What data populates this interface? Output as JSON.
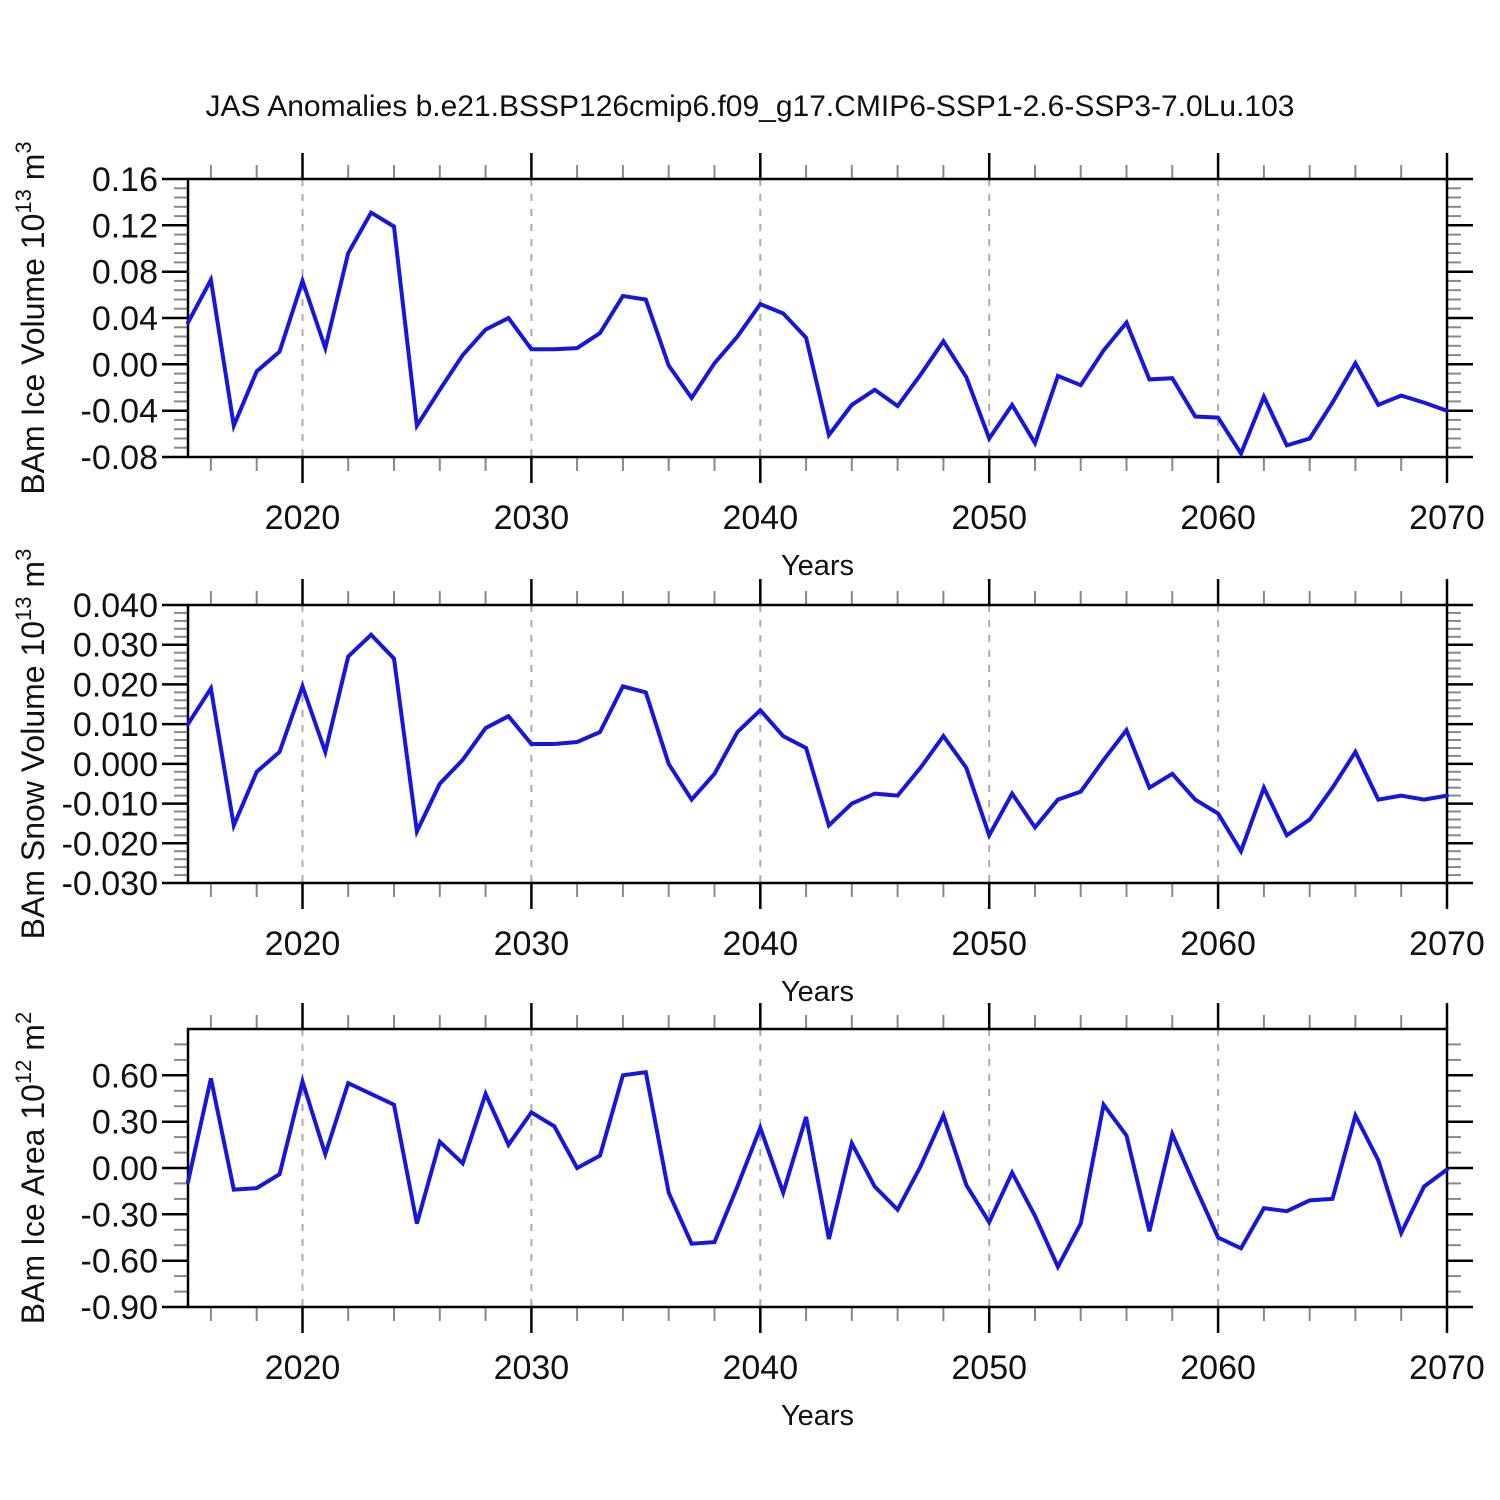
{
  "page": {
    "title": "JAS Anomalies b.e21.BSSP126cmip6.f09_g17.CMIP6-SSP1-2.6-SSP3-7.0Lu.103"
  },
  "style": {
    "line_color": "#1616dd",
    "grid_color": "#ababab",
    "axis_color": "#000000",
    "minor_tick_color": "#888888"
  },
  "years": [
    2015,
    2016,
    2017,
    2018,
    2019,
    2020,
    2021,
    2022,
    2023,
    2024,
    2025,
    2026,
    2027,
    2028,
    2029,
    2030,
    2031,
    2032,
    2033,
    2034,
    2035,
    2036,
    2037,
    2038,
    2039,
    2040,
    2041,
    2042,
    2043,
    2044,
    2045,
    2046,
    2047,
    2048,
    2049,
    2050,
    2051,
    2052,
    2053,
    2054,
    2055,
    2056,
    2057,
    2058,
    2059,
    2060,
    2061,
    2062,
    2063,
    2064,
    2065,
    2066,
    2067,
    2068,
    2069,
    2070
  ],
  "chart_data": [
    {
      "type": "line",
      "name": "ice-volume",
      "title": "",
      "xlabel": "Years",
      "ylabel": {
        "text": "BAm Ice Volume 10",
        "sup": "13",
        "unit": " m",
        "unit_sup": "3"
      },
      "xlim": [
        2015,
        2070
      ],
      "ylim": [
        -0.08,
        0.16
      ],
      "grid_years": [
        2020,
        2030,
        2040,
        2050,
        2060
      ],
      "x_major_ticks": [
        2020,
        2030,
        2040,
        2050,
        2060,
        2070
      ],
      "x_minor_step": 2,
      "y_major_step": 0.04,
      "y_minor_step": 0.008,
      "yticks": [
        {
          "v": 0.16,
          "label": "0.16"
        },
        {
          "v": 0.12,
          "label": "0.12"
        },
        {
          "v": 0.08,
          "label": "0.08"
        },
        {
          "v": 0.04,
          "label": "0.04"
        },
        {
          "v": 0.0,
          "label": "0.00"
        },
        {
          "v": -0.04,
          "label": "-0.04"
        },
        {
          "v": -0.08,
          "label": "-0.08"
        }
      ],
      "values": [
        0.036,
        0.073,
        -0.053,
        -0.006,
        0.011,
        0.072,
        0.014,
        0.096,
        0.131,
        0.119,
        -0.053,
        -0.022,
        0.008,
        0.03,
        0.04,
        0.013,
        0.013,
        0.014,
        0.027,
        0.059,
        0.056,
        -0.001,
        -0.029,
        0.001,
        0.024,
        0.052,
        0.044,
        0.023,
        -0.061,
        -0.035,
        -0.022,
        -0.036,
        -0.009,
        0.02,
        -0.011,
        -0.064,
        -0.035,
        -0.068,
        -0.01,
        -0.018,
        0.012,
        0.036,
        -0.013,
        -0.012,
        -0.045,
        -0.046,
        -0.077,
        -0.028,
        -0.07,
        -0.064,
        -0.033,
        0.001,
        -0.035,
        -0.027,
        -0.033,
        -0.04
      ]
    },
    {
      "type": "line",
      "name": "snow-volume",
      "title": "",
      "xlabel": "Years",
      "ylabel": {
        "text": "BAm Snow Volume 10",
        "sup": "13",
        "unit": " m",
        "unit_sup": "3"
      },
      "xlim": [
        2015,
        2070
      ],
      "ylim": [
        -0.03,
        0.04
      ],
      "grid_years": [
        2020,
        2030,
        2040,
        2050,
        2060
      ],
      "x_major_ticks": [
        2020,
        2030,
        2040,
        2050,
        2060,
        2070
      ],
      "x_minor_step": 2,
      "y_major_step": 0.01,
      "y_minor_step": 0.002,
      "yticks": [
        {
          "v": 0.04,
          "label": "0.040"
        },
        {
          "v": 0.03,
          "label": "0.030"
        },
        {
          "v": 0.02,
          "label": "0.020"
        },
        {
          "v": 0.01,
          "label": "0.010"
        },
        {
          "v": 0.0,
          "label": "0.000"
        },
        {
          "v": -0.01,
          "label": "-0.010"
        },
        {
          "v": -0.02,
          "label": "-0.020"
        },
        {
          "v": -0.03,
          "label": "-0.030"
        }
      ],
      "values": [
        0.01,
        0.019,
        -0.0155,
        -0.002,
        0.003,
        0.0195,
        0.003,
        0.027,
        0.0325,
        0.0265,
        -0.017,
        -0.005,
        0.001,
        0.009,
        0.012,
        0.005,
        0.005,
        0.0055,
        0.008,
        0.0195,
        0.018,
        0.0,
        -0.009,
        -0.0025,
        0.008,
        0.0135,
        0.007,
        0.004,
        -0.0155,
        -0.01,
        -0.0075,
        -0.008,
        -0.001,
        0.007,
        -0.001,
        -0.018,
        -0.0075,
        -0.016,
        -0.009,
        -0.007,
        0.001,
        0.0085,
        -0.006,
        -0.0025,
        -0.009,
        -0.0125,
        -0.022,
        -0.006,
        -0.018,
        -0.014,
        -0.006,
        0.003,
        -0.009,
        -0.008,
        -0.009,
        -0.008
      ]
    },
    {
      "type": "line",
      "name": "ice-area",
      "title": "",
      "xlabel": "Years",
      "ylabel": {
        "text": "BAm Ice Area 10",
        "sup": "12",
        "unit": " m",
        "unit_sup": "2"
      },
      "xlim": [
        2015,
        2070
      ],
      "ylim": [
        -0.9,
        0.9
      ],
      "grid_years": [
        2020,
        2030,
        2040,
        2050,
        2060
      ],
      "x_major_ticks": [
        2020,
        2030,
        2040,
        2050,
        2060,
        2070
      ],
      "x_minor_step": 2,
      "y_major_step": 0.3,
      "y_minor_step": 0.1,
      "yticks": [
        {
          "v": 0.6,
          "label": "0.60"
        },
        {
          "v": 0.3,
          "label": "0.30"
        },
        {
          "v": 0.0,
          "label": "0.00"
        },
        {
          "v": -0.3,
          "label": "-0.30"
        },
        {
          "v": -0.6,
          "label": "-0.60"
        },
        {
          "v": -0.9,
          "label": "-0.90"
        }
      ],
      "values": [
        -0.09,
        0.58,
        -0.14,
        -0.13,
        -0.04,
        0.56,
        0.09,
        0.55,
        0.48,
        0.41,
        -0.36,
        0.17,
        0.03,
        0.48,
        0.15,
        0.36,
        0.27,
        0.0,
        0.08,
        0.6,
        0.62,
        -0.16,
        -0.49,
        -0.48,
        -0.12,
        0.26,
        -0.16,
        0.33,
        -0.46,
        0.16,
        -0.12,
        -0.27,
        0.01,
        0.34,
        -0.11,
        -0.35,
        -0.03,
        -0.31,
        -0.64,
        -0.36,
        0.41,
        0.21,
        -0.41,
        0.22,
        -0.12,
        -0.45,
        -0.52,
        -0.26,
        -0.28,
        -0.21,
        -0.2,
        0.34,
        0.05,
        -0.42,
        -0.12,
        -0.01
      ]
    }
  ]
}
